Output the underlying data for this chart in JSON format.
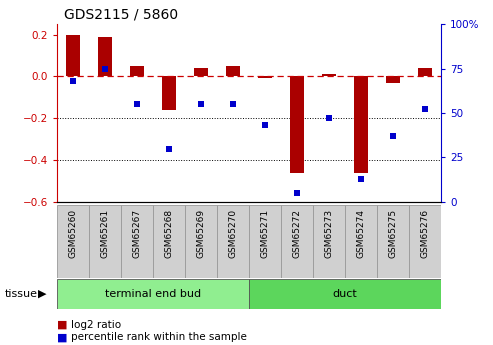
{
  "title": "GDS2115 / 5860",
  "samples": [
    "GSM65260",
    "GSM65261",
    "GSM65267",
    "GSM65268",
    "GSM65269",
    "GSM65270",
    "GSM65271",
    "GSM65272",
    "GSM65273",
    "GSM65274",
    "GSM65275",
    "GSM65276"
  ],
  "log2_ratio": [
    0.2,
    0.19,
    0.05,
    -0.16,
    0.04,
    0.05,
    -0.01,
    -0.46,
    0.01,
    -0.46,
    -0.03,
    0.04
  ],
  "percentile_rank": [
    68,
    75,
    55,
    30,
    55,
    55,
    43,
    5,
    47,
    13,
    37,
    52
  ],
  "tissue_groups": [
    {
      "label": "terminal end bud",
      "start": 0,
      "end": 6,
      "color": "#90EE90"
    },
    {
      "label": "duct",
      "start": 6,
      "end": 12,
      "color": "#5CD65C"
    }
  ],
  "bar_color": "#AA0000",
  "dot_color": "#0000CC",
  "ylim_left": [
    -0.6,
    0.25
  ],
  "ylim_right": [
    0,
    100
  ],
  "yticks_left": [
    -0.6,
    -0.4,
    -0.2,
    0.0,
    0.2
  ],
  "yticks_right": [
    0,
    25,
    50,
    75,
    100
  ],
  "hline_y": 0.0,
  "dotted_lines": [
    -0.2,
    -0.4
  ],
  "legend_log2": "log2 ratio",
  "legend_pct": "percentile rank within the sample",
  "tissue_label": "tissue",
  "bar_width": 0.45,
  "sample_box_color": "#D0D0D0",
  "sample_box_edge": "#999999"
}
